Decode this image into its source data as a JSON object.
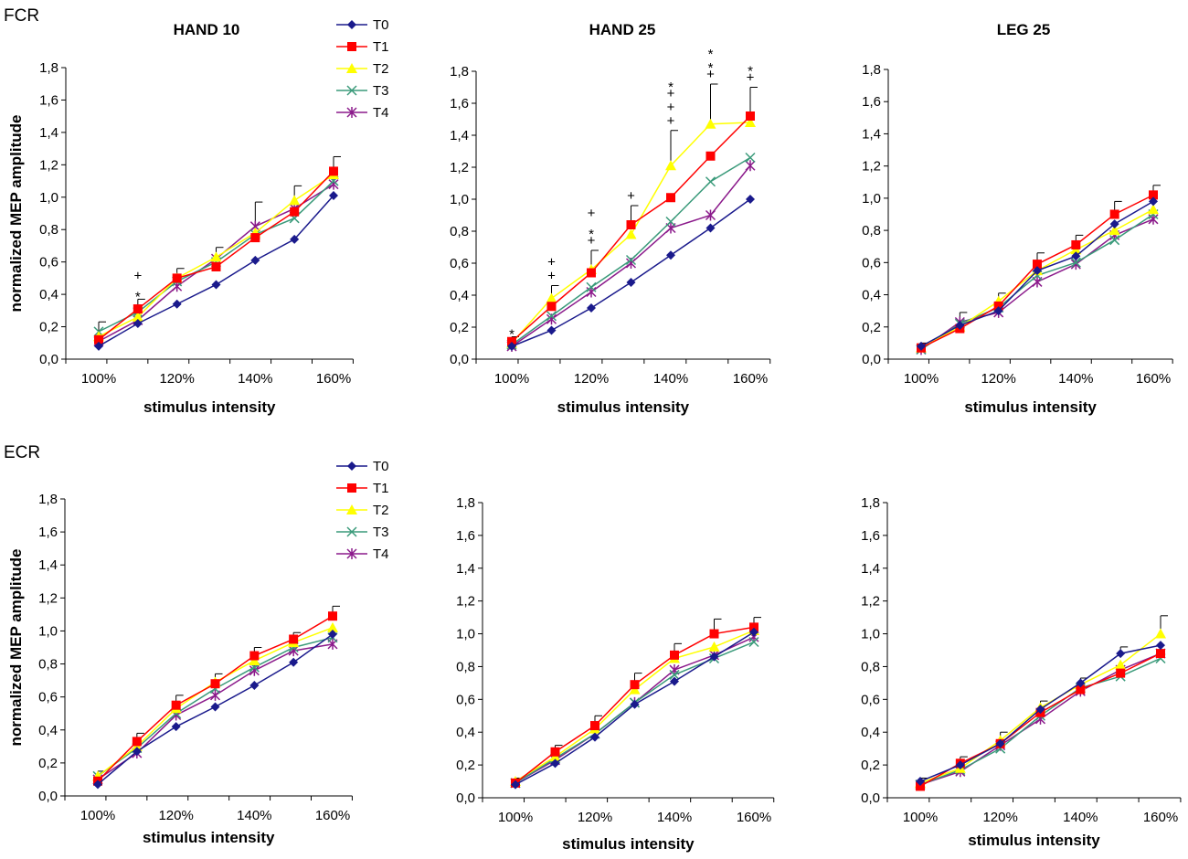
{
  "figure": {
    "row_labels": [
      "FCR",
      "ECR"
    ],
    "ylabel": "normalized MEP amplitude",
    "xlabel": "stimulus intensity",
    "yticks": [
      "0,0",
      "0,2",
      "0,4",
      "0,6",
      "0,8",
      "1,0",
      "1,2",
      "1,4",
      "1,6",
      "1,8"
    ],
    "xticks": [
      "100%",
      "120%",
      "140%",
      "160%"
    ],
    "ylim": [
      0,
      1.8
    ],
    "x": [
      100,
      110,
      120,
      130,
      140,
      150,
      160
    ]
  },
  "legend": [
    {
      "name": "T0",
      "color": "#1a1a8c",
      "marker": "diamond"
    },
    {
      "name": "T1",
      "color": "#ff0000",
      "marker": "square"
    },
    {
      "name": "T2",
      "color": "#ffff00",
      "marker": "triangle"
    },
    {
      "name": "T3",
      "color": "#3a9a7a",
      "marker": "x"
    },
    {
      "name": "T4",
      "color": "#8b1a8b",
      "marker": "star"
    }
  ],
  "chart_data": [
    {
      "type": "line",
      "muscle": "FCR",
      "title": "HAND 10",
      "xlabel": "stimulus intensity",
      "ylabel": "normalized MEP amplitude",
      "ylim": [
        0,
        1.8
      ],
      "x": [
        100,
        110,
        120,
        130,
        140,
        150,
        160
      ],
      "series": [
        {
          "name": "T0",
          "values": [
            0.08,
            0.22,
            0.34,
            0.46,
            0.61,
            0.74,
            1.01
          ]
        },
        {
          "name": "T1",
          "values": [
            0.12,
            0.31,
            0.5,
            0.57,
            0.75,
            0.91,
            1.16
          ]
        },
        {
          "name": "T2",
          "values": [
            0.14,
            0.26,
            0.5,
            0.63,
            0.78,
            0.98,
            1.14
          ]
        },
        {
          "name": "T3",
          "values": [
            0.17,
            0.29,
            0.48,
            0.6,
            0.77,
            0.87,
            1.1
          ]
        },
        {
          "name": "T4",
          "values": [
            0.11,
            0.24,
            0.45,
            0.62,
            0.82,
            0.93,
            1.08
          ]
        }
      ],
      "errors": [
        {
          "x": 100,
          "top": 0.23
        },
        {
          "x": 110,
          "top": 0.37
        },
        {
          "x": 120,
          "top": 0.56
        },
        {
          "x": 130,
          "top": 0.69
        },
        {
          "x": 140,
          "top": 0.97
        },
        {
          "x": 150,
          "top": 1.07
        },
        {
          "x": 160,
          "top": 1.25
        }
      ],
      "annotations": [
        {
          "x": 110,
          "symbols": [
            "+",
            "*"
          ]
        }
      ]
    },
    {
      "type": "line",
      "muscle": "FCR",
      "title": "HAND 25",
      "xlabel": "stimulus intensity",
      "ylabel": "normalized MEP amplitude",
      "ylim": [
        0,
        1.8
      ],
      "x": [
        100,
        110,
        120,
        130,
        140,
        150,
        160
      ],
      "series": [
        {
          "name": "T0",
          "values": [
            0.08,
            0.18,
            0.32,
            0.48,
            0.65,
            0.82,
            1.0
          ]
        },
        {
          "name": "T1",
          "values": [
            0.11,
            0.33,
            0.54,
            0.84,
            1.01,
            1.27,
            1.52
          ]
        },
        {
          "name": "T2",
          "values": [
            0.1,
            0.38,
            0.56,
            0.78,
            1.21,
            1.47,
            1.48
          ]
        },
        {
          "name": "T3",
          "values": [
            0.09,
            0.27,
            0.45,
            0.62,
            0.86,
            1.11,
            1.26
          ]
        },
        {
          "name": "T4",
          "values": [
            0.08,
            0.25,
            0.42,
            0.6,
            0.82,
            0.9,
            1.21
          ]
        }
      ],
      "errors": [
        {
          "x": 100,
          "top": 0.14
        },
        {
          "x": 110,
          "top": 0.46
        },
        {
          "x": 120,
          "top": 0.68
        },
        {
          "x": 130,
          "top": 0.96
        },
        {
          "x": 140,
          "top": 1.43
        },
        {
          "x": 150,
          "top": 1.72
        },
        {
          "x": 160,
          "top": 1.7
        }
      ],
      "annotations": [
        {
          "x": 100,
          "symbols": [
            "*"
          ]
        },
        {
          "x": 110,
          "symbols": [
            "+",
            "+"
          ]
        },
        {
          "x": 120,
          "symbols": [
            "+",
            "*",
            "+"
          ]
        },
        {
          "x": 130,
          "symbols": [
            "+"
          ]
        },
        {
          "x": 140,
          "symbols": [
            "*",
            "+",
            "+",
            "+"
          ]
        },
        {
          "x": 150,
          "symbols": [
            "*",
            "*",
            "+"
          ]
        },
        {
          "x": 160,
          "symbols": [
            "*",
            "+"
          ]
        }
      ]
    },
    {
      "type": "line",
      "muscle": "FCR",
      "title": "LEG 25",
      "xlabel": "stimulus intensity",
      "ylabel": "normalized MEP amplitude",
      "ylim": [
        0,
        1.8
      ],
      "x": [
        100,
        110,
        120,
        130,
        140,
        150,
        160
      ],
      "series": [
        {
          "name": "T0",
          "values": [
            0.08,
            0.21,
            0.3,
            0.55,
            0.64,
            0.84,
            0.98
          ]
        },
        {
          "name": "T1",
          "values": [
            0.07,
            0.19,
            0.33,
            0.59,
            0.71,
            0.9,
            1.02
          ]
        },
        {
          "name": "T2",
          "values": [
            0.07,
            0.2,
            0.36,
            0.55,
            0.68,
            0.8,
            0.93
          ]
        },
        {
          "name": "T3",
          "values": [
            0.06,
            0.22,
            0.32,
            0.52,
            0.6,
            0.74,
            0.9
          ]
        },
        {
          "name": "T4",
          "values": [
            0.06,
            0.23,
            0.29,
            0.48,
            0.59,
            0.77,
            0.87
          ]
        }
      ],
      "errors": [
        {
          "x": 100,
          "top": 0.1
        },
        {
          "x": 110,
          "top": 0.29
        },
        {
          "x": 120,
          "top": 0.41
        },
        {
          "x": 130,
          "top": 0.66
        },
        {
          "x": 140,
          "top": 0.77
        },
        {
          "x": 150,
          "top": 0.98
        },
        {
          "x": 160,
          "top": 1.08
        }
      ],
      "annotations": []
    },
    {
      "type": "line",
      "muscle": "ECR",
      "title": "",
      "xlabel": "stimulus intensity",
      "ylabel": "normalized MEP amplitude",
      "ylim": [
        0,
        1.8
      ],
      "x": [
        100,
        110,
        120,
        130,
        140,
        150,
        160
      ],
      "series": [
        {
          "name": "T0",
          "values": [
            0.07,
            0.27,
            0.42,
            0.54,
            0.67,
            0.81,
            0.98
          ]
        },
        {
          "name": "T1",
          "values": [
            0.09,
            0.33,
            0.55,
            0.68,
            0.85,
            0.95,
            1.09
          ]
        },
        {
          "name": "T2",
          "values": [
            0.12,
            0.3,
            0.53,
            0.69,
            0.82,
            0.93,
            1.02
          ]
        },
        {
          "name": "T3",
          "values": [
            0.12,
            0.29,
            0.5,
            0.65,
            0.78,
            0.9,
            0.96
          ]
        },
        {
          "name": "T4",
          "values": [
            0.1,
            0.26,
            0.49,
            0.61,
            0.76,
            0.88,
            0.92
          ]
        }
      ],
      "errors": [
        {
          "x": 100,
          "top": 0.15
        },
        {
          "x": 110,
          "top": 0.38
        },
        {
          "x": 120,
          "top": 0.61
        },
        {
          "x": 130,
          "top": 0.74
        },
        {
          "x": 140,
          "top": 0.9
        },
        {
          "x": 150,
          "top": 0.99
        },
        {
          "x": 160,
          "top": 1.15
        }
      ],
      "annotations": []
    },
    {
      "type": "line",
      "muscle": "ECR",
      "title": "",
      "xlabel": "stimulus intensity",
      "ylabel": "normalized MEP amplitude",
      "ylim": [
        0,
        1.8
      ],
      "x": [
        100,
        110,
        120,
        130,
        140,
        150,
        160
      ],
      "series": [
        {
          "name": "T0",
          "values": [
            0.08,
            0.21,
            0.37,
            0.57,
            0.71,
            0.86,
            1.01
          ]
        },
        {
          "name": "T1",
          "values": [
            0.09,
            0.28,
            0.44,
            0.69,
            0.87,
            1.0,
            1.04
          ]
        },
        {
          "name": "T2",
          "values": [
            0.1,
            0.25,
            0.42,
            0.66,
            0.85,
            0.92,
            1.02
          ]
        },
        {
          "name": "T3",
          "values": [
            0.09,
            0.24,
            0.39,
            0.58,
            0.75,
            0.85,
            0.95
          ]
        },
        {
          "name": "T4",
          "values": [
            0.09,
            0.23,
            0.39,
            0.58,
            0.78,
            0.87,
            0.98
          ]
        }
      ],
      "errors": [
        {
          "x": 100,
          "top": 0.12
        },
        {
          "x": 110,
          "top": 0.32
        },
        {
          "x": 120,
          "top": 0.5
        },
        {
          "x": 130,
          "top": 0.76
        },
        {
          "x": 140,
          "top": 0.94
        },
        {
          "x": 150,
          "top": 1.09
        },
        {
          "x": 160,
          "top": 1.1
        }
      ],
      "annotations": []
    },
    {
      "type": "line",
      "muscle": "ECR",
      "title": "",
      "xlabel": "stimulus intensity",
      "ylabel": "normalized MEP amplitude",
      "ylim": [
        0,
        1.8
      ],
      "x": [
        100,
        110,
        120,
        130,
        140,
        150,
        160
      ],
      "series": [
        {
          "name": "T0",
          "values": [
            0.1,
            0.2,
            0.33,
            0.54,
            0.7,
            0.88,
            0.93
          ]
        },
        {
          "name": "T1",
          "values": [
            0.07,
            0.21,
            0.33,
            0.52,
            0.66,
            0.76,
            0.88
          ]
        },
        {
          "name": "T2",
          "values": [
            0.09,
            0.18,
            0.35,
            0.55,
            0.69,
            0.81,
            1.0
          ]
        },
        {
          "name": "T3",
          "values": [
            0.08,
            0.17,
            0.3,
            0.5,
            0.67,
            0.74,
            0.85
          ]
        },
        {
          "name": "T4",
          "values": [
            0.08,
            0.16,
            0.32,
            0.48,
            0.65,
            0.78,
            0.88
          ]
        }
      ],
      "errors": [
        {
          "x": 100,
          "top": 0.12
        },
        {
          "x": 110,
          "top": 0.25
        },
        {
          "x": 120,
          "top": 0.4
        },
        {
          "x": 130,
          "top": 0.59
        },
        {
          "x": 140,
          "top": 0.73
        },
        {
          "x": 150,
          "top": 0.92
        },
        {
          "x": 160,
          "top": 1.11
        }
      ],
      "annotations": []
    }
  ]
}
